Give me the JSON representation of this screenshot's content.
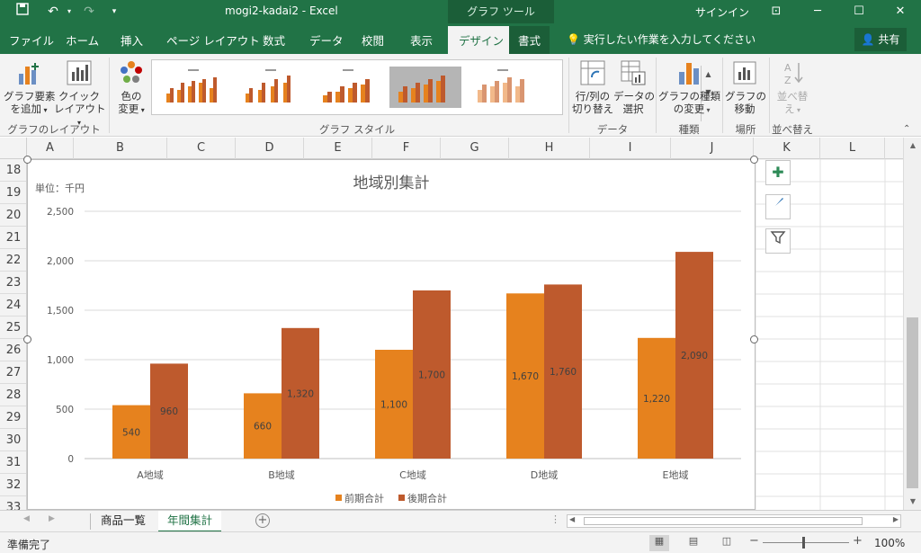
{
  "titlebar": {
    "title": "mogi2-kadai2  -  Excel",
    "context_tools": "グラフ ツール",
    "signin": "サインイン"
  },
  "tabs": [
    "ファイル",
    "ホーム",
    "挿入",
    "ページ レイアウト",
    "数式",
    "データ",
    "校閲",
    "表示"
  ],
  "active_tab": "デザイン",
  "format_tab": "書式",
  "tellme": "実行したい作業を入力してください",
  "share": "共有",
  "ribbon": {
    "add_element": "グラフ要素\nを追加",
    "quick_layout": "クイック\nレイアウト",
    "change_colors": "色の\n変更",
    "group_layouts": "グラフのレイアウト",
    "group_styles": "グラフ スタイル",
    "switch_rowcol": "行/列の\n切り替え",
    "select_data": "データの\n選択",
    "group_data": "データ",
    "change_type": "グラフの種類\nの変更",
    "group_type": "種類",
    "move_chart": "グラフの\n移動",
    "group_location": "場所",
    "sort": "並べ替\nえ",
    "group_sort": "並べ替え"
  },
  "columns": [
    "A",
    "B",
    "C",
    "D",
    "E",
    "F",
    "G",
    "H",
    "I",
    "J",
    "K",
    "L"
  ],
  "rows": [
    "18",
    "19",
    "20",
    "21",
    "22",
    "23",
    "24",
    "25",
    "26",
    "27",
    "28",
    "29",
    "30",
    "31",
    "32",
    "33"
  ],
  "chart_data": {
    "type": "bar",
    "title": "地域別集計",
    "unit_label": "単位：千円",
    "categories": [
      "A地域",
      "B地域",
      "C地域",
      "D地域",
      "E地域"
    ],
    "series": [
      {
        "name": "前期合計",
        "values": [
          540,
          660,
          1100,
          1670,
          1220
        ],
        "color": "#E6821E"
      },
      {
        "name": "後期合計",
        "values": [
          960,
          1320,
          1700,
          1760,
          2090
        ],
        "color": "#BE5A2D"
      }
    ],
    "data_labels": {
      "前期合計": [
        "540",
        "660",
        "1,100",
        "1,670",
        "1,220"
      ],
      "後期合計": [
        "960",
        "1,320",
        "1,700",
        "1,760",
        "2,090"
      ]
    },
    "yticks": [
      "0",
      "500",
      "1,000",
      "1,500",
      "2,000",
      "2,500"
    ],
    "ylim": [
      0,
      2500
    ],
    "grid": true,
    "legend_position": "bottom"
  },
  "sheets": [
    "商品一覧",
    "年間集計"
  ],
  "active_sheet": "年間集計",
  "status": "準備完了",
  "zoom": "100%"
}
